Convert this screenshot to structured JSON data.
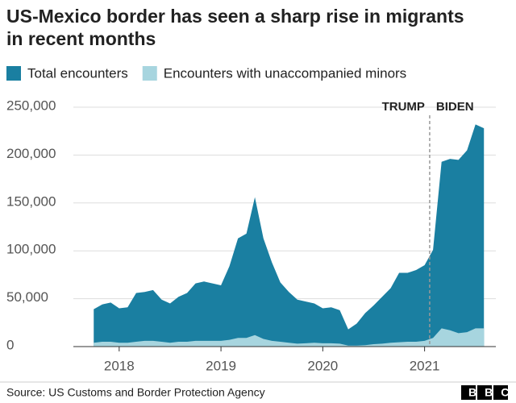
{
  "chart_data": {
    "type": "area",
    "title": "US-Mexico border has seen a sharp rise in migrants in recent months",
    "x": [
      2017.75,
      2017.833,
      2017.917,
      2018,
      2018.083,
      2018.167,
      2018.25,
      2018.333,
      2018.417,
      2018.5,
      2018.583,
      2018.667,
      2018.75,
      2018.833,
      2018.917,
      2019,
      2019.083,
      2019.167,
      2019.25,
      2019.333,
      2019.417,
      2019.5,
      2019.583,
      2019.667,
      2019.75,
      2019.833,
      2019.917,
      2020,
      2020.083,
      2020.167,
      2020.25,
      2020.333,
      2020.417,
      2020.5,
      2020.583,
      2020.667,
      2020.75,
      2020.833,
      2020.917,
      2021,
      2021.083,
      2021.167,
      2021.25,
      2021.333,
      2021.417,
      2021.5,
      2021.583
    ],
    "series": [
      {
        "name": "Total encounters",
        "color": "#1a7fa1",
        "values": [
          39000,
          44000,
          46000,
          40000,
          41000,
          56000,
          57000,
          59000,
          49000,
          45000,
          52000,
          56000,
          66000,
          68000,
          66000,
          64000,
          84000,
          113000,
          118000,
          156000,
          113000,
          88000,
          67000,
          57000,
          49000,
          47000,
          45000,
          40000,
          41000,
          38000,
          18000,
          24000,
          35000,
          43000,
          52000,
          61000,
          77000,
          77000,
          80000,
          85000,
          101000,
          193000,
          196000,
          195000,
          205000,
          232000,
          228000
        ]
      },
      {
        "name": "Encounters with unaccompanied minors",
        "color": "#a7d5df",
        "values": [
          4000,
          5000,
          5000,
          4000,
          4000,
          5000,
          6000,
          6000,
          5000,
          4000,
          5000,
          5000,
          6000,
          6000,
          6000,
          6000,
          7000,
          9000,
          9000,
          12000,
          8000,
          6000,
          5000,
          4000,
          3000,
          3500,
          4000,
          3500,
          3500,
          3000,
          1000,
          1000,
          1500,
          2500,
          3000,
          4000,
          4500,
          5000,
          5000,
          6000,
          9000,
          19000,
          17000,
          14000,
          15000,
          19000,
          19000
        ]
      }
    ],
    "xlim": [
      2017.55,
      2021.7
    ],
    "xticks": [
      2018,
      2019,
      2020,
      2021
    ],
    "ylim": [
      0,
      250000
    ],
    "yticks": [
      0,
      {
        "value": 50000,
        "label": "50,000"
      },
      {
        "value": 100000,
        "label": "100,000"
      },
      {
        "value": 150000,
        "label": "150,000"
      },
      {
        "value": 200000,
        "label": "200,000"
      },
      {
        "value": 250000,
        "label": "250,000"
      }
    ],
    "grid": true,
    "divider_x": 2021.05,
    "annotations": [
      "TRUMP",
      "BIDEN"
    ],
    "source": "Source: US Customs and Border Protection Agency",
    "logo": "BBC"
  }
}
